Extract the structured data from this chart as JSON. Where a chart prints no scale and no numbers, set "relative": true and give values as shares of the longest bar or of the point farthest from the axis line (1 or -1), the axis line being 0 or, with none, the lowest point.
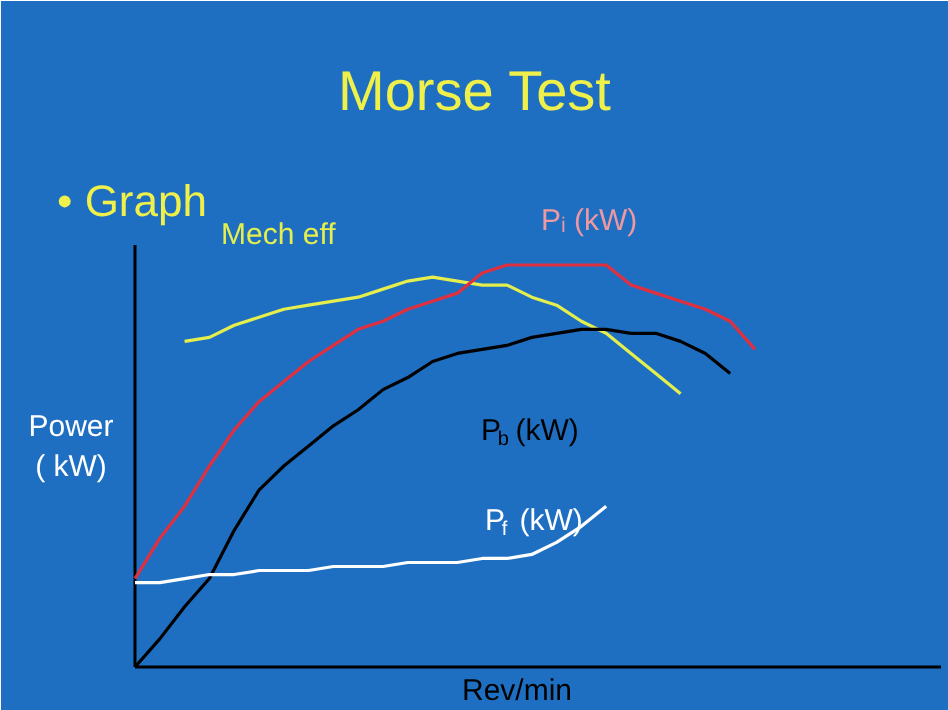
{
  "chart_data": {
    "type": "line",
    "title": "Morse Test",
    "annotations": [
      "• Graph"
    ],
    "ylabel": "Power\n( kW)",
    "xlabel": "Rev/min",
    "relative": true,
    "grid": false,
    "marker": "none",
    "line_style": "solid",
    "categories": [
      null,
      null,
      null,
      null,
      null,
      null,
      null,
      null,
      null,
      null,
      null,
      null,
      null,
      null,
      null,
      null,
      null,
      null,
      null,
      null,
      null,
      null,
      null,
      null,
      null,
      null
    ],
    "series": [
      {
        "name": "Mech eff",
        "color": "#e4ee4c",
        "values": [
          null,
          null,
          0.81,
          0.82,
          0.85,
          0.87,
          0.89,
          0.9,
          0.91,
          0.92,
          0.94,
          0.96,
          0.97,
          0.96,
          0.95,
          0.95,
          0.92,
          0.9,
          0.86,
          0.83,
          0.78,
          0.73,
          0.68,
          null,
          null,
          null
        ]
      },
      {
        "name": "Pᵢ (kW)",
        "color": "#e0303f",
        "values": [
          0.22,
          0.32,
          0.4,
          0.5,
          0.59,
          0.66,
          0.71,
          0.76,
          0.8,
          0.84,
          0.86,
          0.89,
          0.91,
          0.93,
          0.98,
          1.0,
          1.0,
          1.0,
          1.0,
          1.0,
          0.95,
          0.93,
          0.91,
          0.89,
          0.86,
          0.79
        ]
      },
      {
        "name": "P$_{b}$ (kW)",
        "color": "#000000",
        "values": [
          0.0,
          0.07,
          0.15,
          0.22,
          0.34,
          0.44,
          0.5,
          0.55,
          0.6,
          0.64,
          0.69,
          0.72,
          0.76,
          0.78,
          0.79,
          0.8,
          0.82,
          0.83,
          0.84,
          0.84,
          0.83,
          0.83,
          0.81,
          0.78,
          0.73,
          null
        ]
      },
      {
        "name": "P$_{f}$ (kW)",
        "color": "#ffffff",
        "values": [
          0.21,
          0.21,
          0.22,
          0.23,
          0.23,
          0.24,
          0.24,
          0.24,
          0.25,
          0.25,
          0.25,
          0.26,
          0.26,
          0.26,
          0.27,
          0.27,
          0.28,
          0.31,
          0.35,
          0.4,
          null,
          null,
          null,
          null,
          null,
          null
        ]
      }
    ]
  }
}
